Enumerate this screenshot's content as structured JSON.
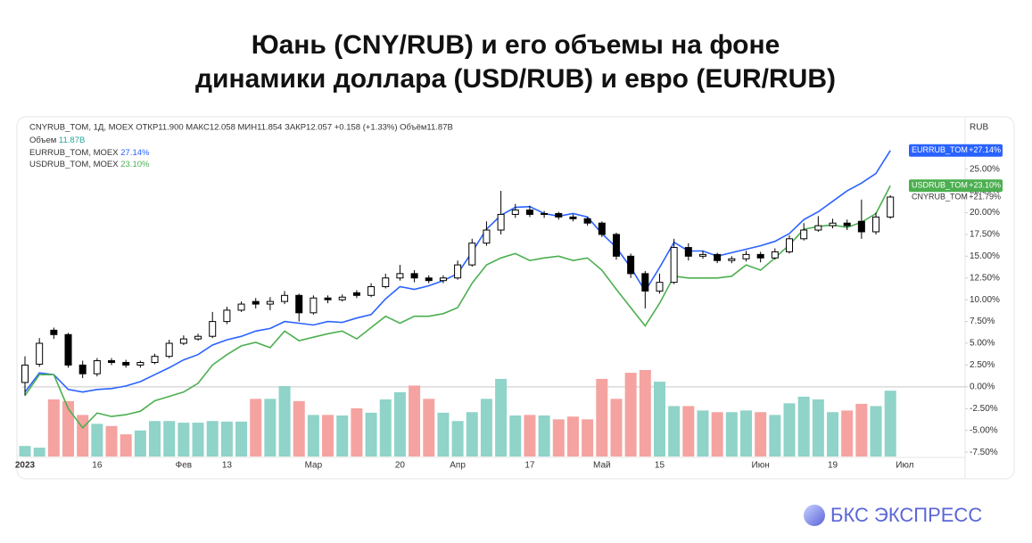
{
  "chart_data": {
    "type": "candlestick",
    "title": [
      "Юань (CNY/RUB) и его объемы на фоне",
      "динамики доллара (USD/RUB) и евро (EUR/RUB)"
    ],
    "legend_header": "CNYRUB_TOM, 1Д, MOEX  ОТКР11.900  МАКС12.058  МИН11.854  ЗАКР12.057  +0.158 (+1.33%)  Объём11.87B",
    "currency": "RUB",
    "categories": [
      "2023",
      null,
      null,
      null,
      null,
      "16",
      null,
      null,
      null,
      null,
      null,
      "Фев",
      null,
      null,
      "13",
      null,
      null,
      null,
      null,
      null,
      "Мар",
      null,
      null,
      null,
      null,
      null,
      "20",
      null,
      null,
      null,
      "Апр",
      null,
      null,
      null,
      null,
      "17",
      null,
      null,
      null,
      null,
      "Май",
      null,
      null,
      null,
      "15",
      null,
      null,
      null,
      null,
      null,
      null,
      "Июн",
      null,
      null,
      null,
      null,
      "19",
      null,
      null,
      null,
      null,
      "Июл"
    ],
    "candles": {
      "name": "CNYRUB_TOM",
      "badge_value": "+21.79%",
      "up_color": "#ffffff",
      "down_color": "#000000",
      "open": [
        0.5,
        2.6,
        6.5,
        6,
        2.5,
        1.5,
        3,
        2.8,
        2.5,
        2.8,
        3.5,
        5,
        5.5,
        5.8,
        7.5,
        8.8,
        9.8,
        9.5,
        9.8,
        10.5,
        8.5,
        10.2,
        10,
        10.8,
        10.5,
        11.5,
        12.5,
        13,
        12.5,
        12.2,
        12.5,
        14,
        16.5,
        18,
        19.8,
        20.3,
        19.8,
        19.9,
        19.5,
        19.3,
        18.8,
        17.5,
        15,
        13,
        11,
        12,
        16,
        15,
        15.2,
        14.5,
        14.7,
        15.2,
        14.8,
        15.5,
        17,
        18,
        18.5,
        18.8,
        19,
        17.8,
        19.5,
        null
      ],
      "high": [
        3.5,
        5.6,
        6.8,
        6.2,
        3.0,
        3.3,
        3.3,
        3.1,
        3.0,
        3.8,
        5.4,
        5.9,
        6.1,
        8.6,
        9.2,
        9.8,
        10.2,
        10.3,
        11.0,
        10.7,
        10.5,
        10.5,
        10.6,
        11.1,
        11.9,
        13.0,
        14.0,
        13.4,
        12.8,
        12.8,
        14.5,
        17.0,
        19.0,
        22.5,
        21.0,
        20.8,
        20.2,
        20.1,
        19.8,
        19.5,
        19.0,
        17.7,
        15.3,
        13.3,
        13.0,
        17.0,
        16.5,
        15.6,
        15.4,
        15.0,
        15.6,
        15.5,
        15.9,
        17.4,
        18.8,
        19.6,
        19.3,
        19.2,
        21.5,
        20.0,
        22.0,
        null
      ],
      "low": [
        -1.0,
        2.3,
        5.5,
        2.2,
        1.0,
        1.2,
        2.5,
        2.2,
        2.2,
        2.6,
        3.3,
        4.8,
        5.3,
        5.6,
        7.2,
        8.6,
        9.0,
        8.8,
        9.5,
        7.5,
        8.3,
        9.6,
        9.8,
        10.2,
        10.3,
        11.3,
        12.2,
        12.0,
        11.9,
        11.9,
        12.3,
        13.8,
        16.2,
        17.5,
        19.4,
        19.5,
        19.4,
        19.2,
        19.0,
        18.5,
        17.2,
        14.6,
        12.5,
        9.0,
        10.7,
        11.8,
        14.5,
        14.7,
        14.2,
        14.2,
        14.4,
        14.3,
        14.6,
        15.3,
        16.8,
        17.8,
        18.2,
        18.0,
        17.0,
        17.5,
        19.3,
        null
      ],
      "close": [
        2.5,
        5,
        6,
        2.5,
        1.5,
        3,
        2.8,
        2.5,
        2.8,
        3.5,
        5,
        5.5,
        5.8,
        7.5,
        8.8,
        9.5,
        9.5,
        9.8,
        10.5,
        8.5,
        10.2,
        10,
        10.3,
        10.5,
        11.5,
        12.5,
        13,
        12.5,
        12.2,
        12.5,
        14,
        16.5,
        18,
        19.8,
        20.3,
        19.8,
        19.9,
        19.5,
        19.3,
        18.8,
        17.5,
        15,
        13,
        11,
        12,
        16,
        15,
        15.2,
        14.5,
        14.7,
        15.2,
        14.8,
        15.5,
        17,
        18,
        18.5,
        18.8,
        18.5,
        17.8,
        19.5,
        21.79,
        null
      ]
    },
    "volume": {
      "name": "Объем",
      "label": "11.87B",
      "up_color": "#8fd3c9",
      "down_color": "#f5a3a0",
      "values": [
        1.9,
        1.6,
        10.3,
        10.0,
        7.5,
        5.9,
        5.5,
        4.0,
        4.7,
        6.4,
        6.4,
        6.1,
        6.1,
        6.4,
        6.3,
        6.3,
        10.4,
        10.4,
        12.7,
        10.0,
        7.5,
        7.5,
        7.4,
        8.7,
        7.9,
        10.3,
        11.6,
        12.8,
        10.4,
        7.9,
        6.4,
        8.0,
        10.4,
        14.0,
        7.4,
        7.5,
        7.4,
        6.7,
        7.2,
        6.7,
        14.0,
        10.4,
        15.1,
        15.6,
        13.5,
        9.1,
        9.1,
        8.3,
        8.0,
        8.0,
        8.3,
        8.0,
        7.5,
        9.6,
        10.8,
        10.3,
        8.0,
        8.3,
        9.5,
        9.1,
        11.87,
        null
      ]
    },
    "series": [
      {
        "name": "EURRUB_TOM",
        "legend": "EURRUB_TOM, MOEX",
        "legend_value": "27.14%",
        "badge_value": "+27.14%",
        "color": "#2962ff",
        "values": [
          -0.6,
          1.6,
          1.4,
          -0.3,
          -0.6,
          -0.3,
          -0.2,
          0.1,
          0.6,
          1.4,
          2.2,
          3.1,
          3.7,
          4.8,
          5.4,
          5.8,
          6.4,
          6.7,
          7.5,
          7.3,
          7.1,
          7.5,
          7.4,
          7.9,
          8.3,
          10.1,
          11.5,
          11.2,
          11.6,
          12.2,
          13.0,
          15.5,
          18.1,
          19.7,
          20.6,
          20.7,
          19.9,
          19.6,
          19.9,
          19.5,
          17.6,
          16.0,
          13.7,
          11.0,
          13.7,
          16.6,
          15.6,
          15.6,
          15.0,
          15.4,
          15.8,
          16.2,
          16.7,
          17.6,
          19.2,
          20.1,
          21.3,
          22.5,
          23.4,
          24.5,
          27.14,
          null
        ]
      },
      {
        "name": "USDRUB_TOM",
        "legend": "USDRUB_TOM, MOEX",
        "legend_value": "23.10%",
        "badge_value": "+23.10%",
        "color": "#4caf50",
        "values": [
          -1.0,
          1.4,
          1.4,
          -2.5,
          -4.7,
          -3.0,
          -3.4,
          -3.2,
          -2.8,
          -1.6,
          -1.1,
          -0.6,
          0.4,
          2.5,
          3.7,
          4.7,
          5.1,
          4.5,
          6.4,
          5.3,
          5.7,
          6.1,
          6.4,
          5.5,
          6.8,
          8.1,
          7.3,
          8.1,
          8.1,
          8.4,
          9.1,
          11.9,
          14.0,
          14.8,
          15.3,
          14.5,
          14.8,
          15.0,
          14.5,
          14.8,
          13.4,
          11.2,
          9.1,
          7.0,
          9.6,
          12.7,
          12.5,
          12.5,
          12.5,
          12.7,
          14.0,
          13.4,
          14.8,
          16.3,
          18.1,
          18.4,
          18.6,
          18.3,
          18.9,
          19.9,
          23.1,
          null
        ]
      }
    ],
    "ylim": [
      -8,
      30.8
    ],
    "yticks": [
      {
        "value": -7.5,
        "label": "-7.50%"
      },
      {
        "value": -5,
        "label": "-5.00%"
      },
      {
        "value": -2.5,
        "label": "-2.50%"
      },
      {
        "value": 0,
        "label": "0.00%"
      },
      {
        "value": 2.5,
        "label": "2.50%"
      },
      {
        "value": 5,
        "label": "5.00%"
      },
      {
        "value": 7.5,
        "label": "7.50%"
      },
      {
        "value": 10,
        "label": "10.00%"
      },
      {
        "value": 12.5,
        "label": "12.50%"
      },
      {
        "value": 15,
        "label": "15.00%"
      },
      {
        "value": 17.5,
        "label": "17.50%"
      },
      {
        "value": 20,
        "label": "20.00%"
      },
      {
        "value": 22.5,
        "label": "22.50%"
      },
      {
        "value": 25,
        "label": "25.00%"
      }
    ],
    "zero_line": true
  },
  "footer": {
    "brand": "БКС ЭКСПРЕСС"
  }
}
